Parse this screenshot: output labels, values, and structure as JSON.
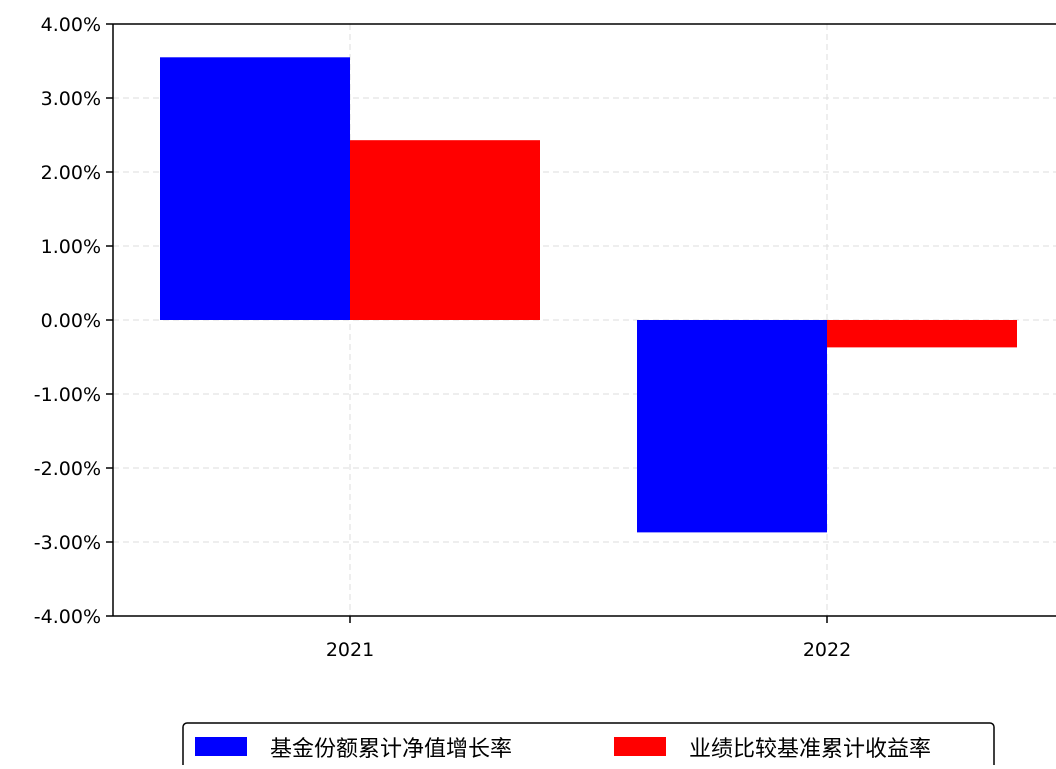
{
  "chart_data": {
    "type": "bar",
    "title": "",
    "xlabel": "",
    "ylabel": "",
    "categories": [
      "2021",
      "2022"
    ],
    "series": [
      {
        "name": "基金份额累计净值增长率",
        "values": [
          3.55,
          -2.87
        ],
        "color": "#0000ff"
      },
      {
        "name": "业绩比较基准累计收益率",
        "values": [
          2.43,
          -0.37
        ],
        "color": "#ff0000"
      }
    ],
    "ylim": [
      -4,
      4
    ],
    "yticks": [
      {
        "value": 4,
        "label": "4.00%"
      },
      {
        "value": 3,
        "label": "3.00%"
      },
      {
        "value": 2,
        "label": "2.00%"
      },
      {
        "value": 1,
        "label": "1.00%"
      },
      {
        "value": 0,
        "label": "0.00%"
      },
      {
        "value": -1,
        "label": "-1.00%"
      },
      {
        "value": -2,
        "label": "-2.00%"
      },
      {
        "value": -3,
        "label": "-3.00%"
      },
      {
        "value": -4,
        "label": "-4.00%"
      }
    ],
    "grid": true,
    "legend": "bottom-center"
  }
}
